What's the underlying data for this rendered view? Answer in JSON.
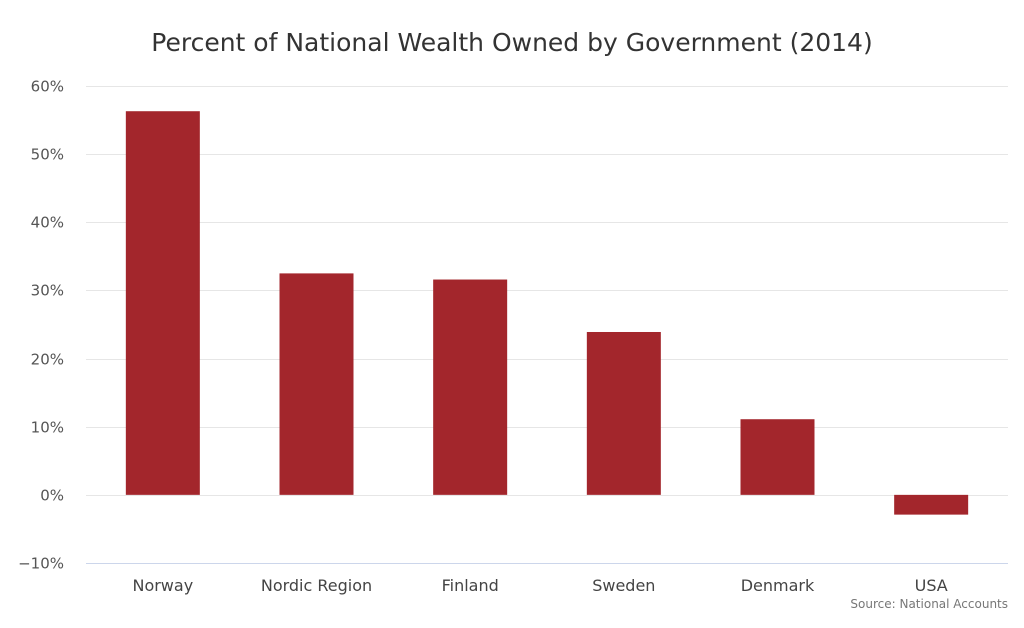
{
  "chart_data": {
    "type": "bar",
    "title": "Percent of National Wealth Owned by Government (2014)",
    "categories": [
      "Norway",
      "Nordic Region",
      "Finland",
      "Sweden",
      "Denmark",
      "USA"
    ],
    "values": [
      56.3,
      32.5,
      31.6,
      23.9,
      11.1,
      -2.9
    ],
    "ylim": [
      -10,
      60
    ],
    "yticks": [
      -10,
      0,
      10,
      20,
      30,
      40,
      50,
      60
    ],
    "ytick_labels": [
      "−10%",
      "0%",
      "10%",
      "20%",
      "30%",
      "40%",
      "50%",
      "60%"
    ],
    "xlabel": "",
    "ylabel": "",
    "grid": true,
    "legend": "none",
    "bar_color": "#a3262c",
    "credit": "Source: National Accounts"
  }
}
